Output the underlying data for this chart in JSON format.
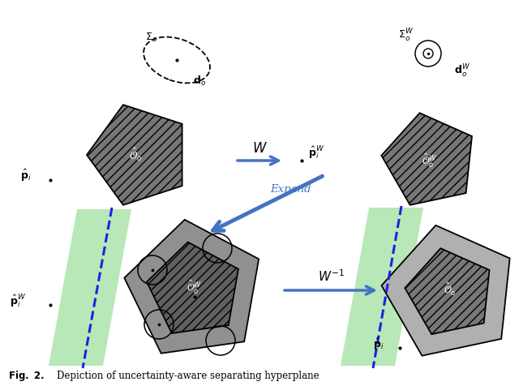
{
  "bg_color": "#ffffff",
  "arrow_color": "#4472c4",
  "green_fill": "#b8e8b8",
  "pentagon_gray": "#7a7a7a",
  "pentagon_outer_gray": "#999999",
  "pentagon_dark": "#5a5a5a"
}
